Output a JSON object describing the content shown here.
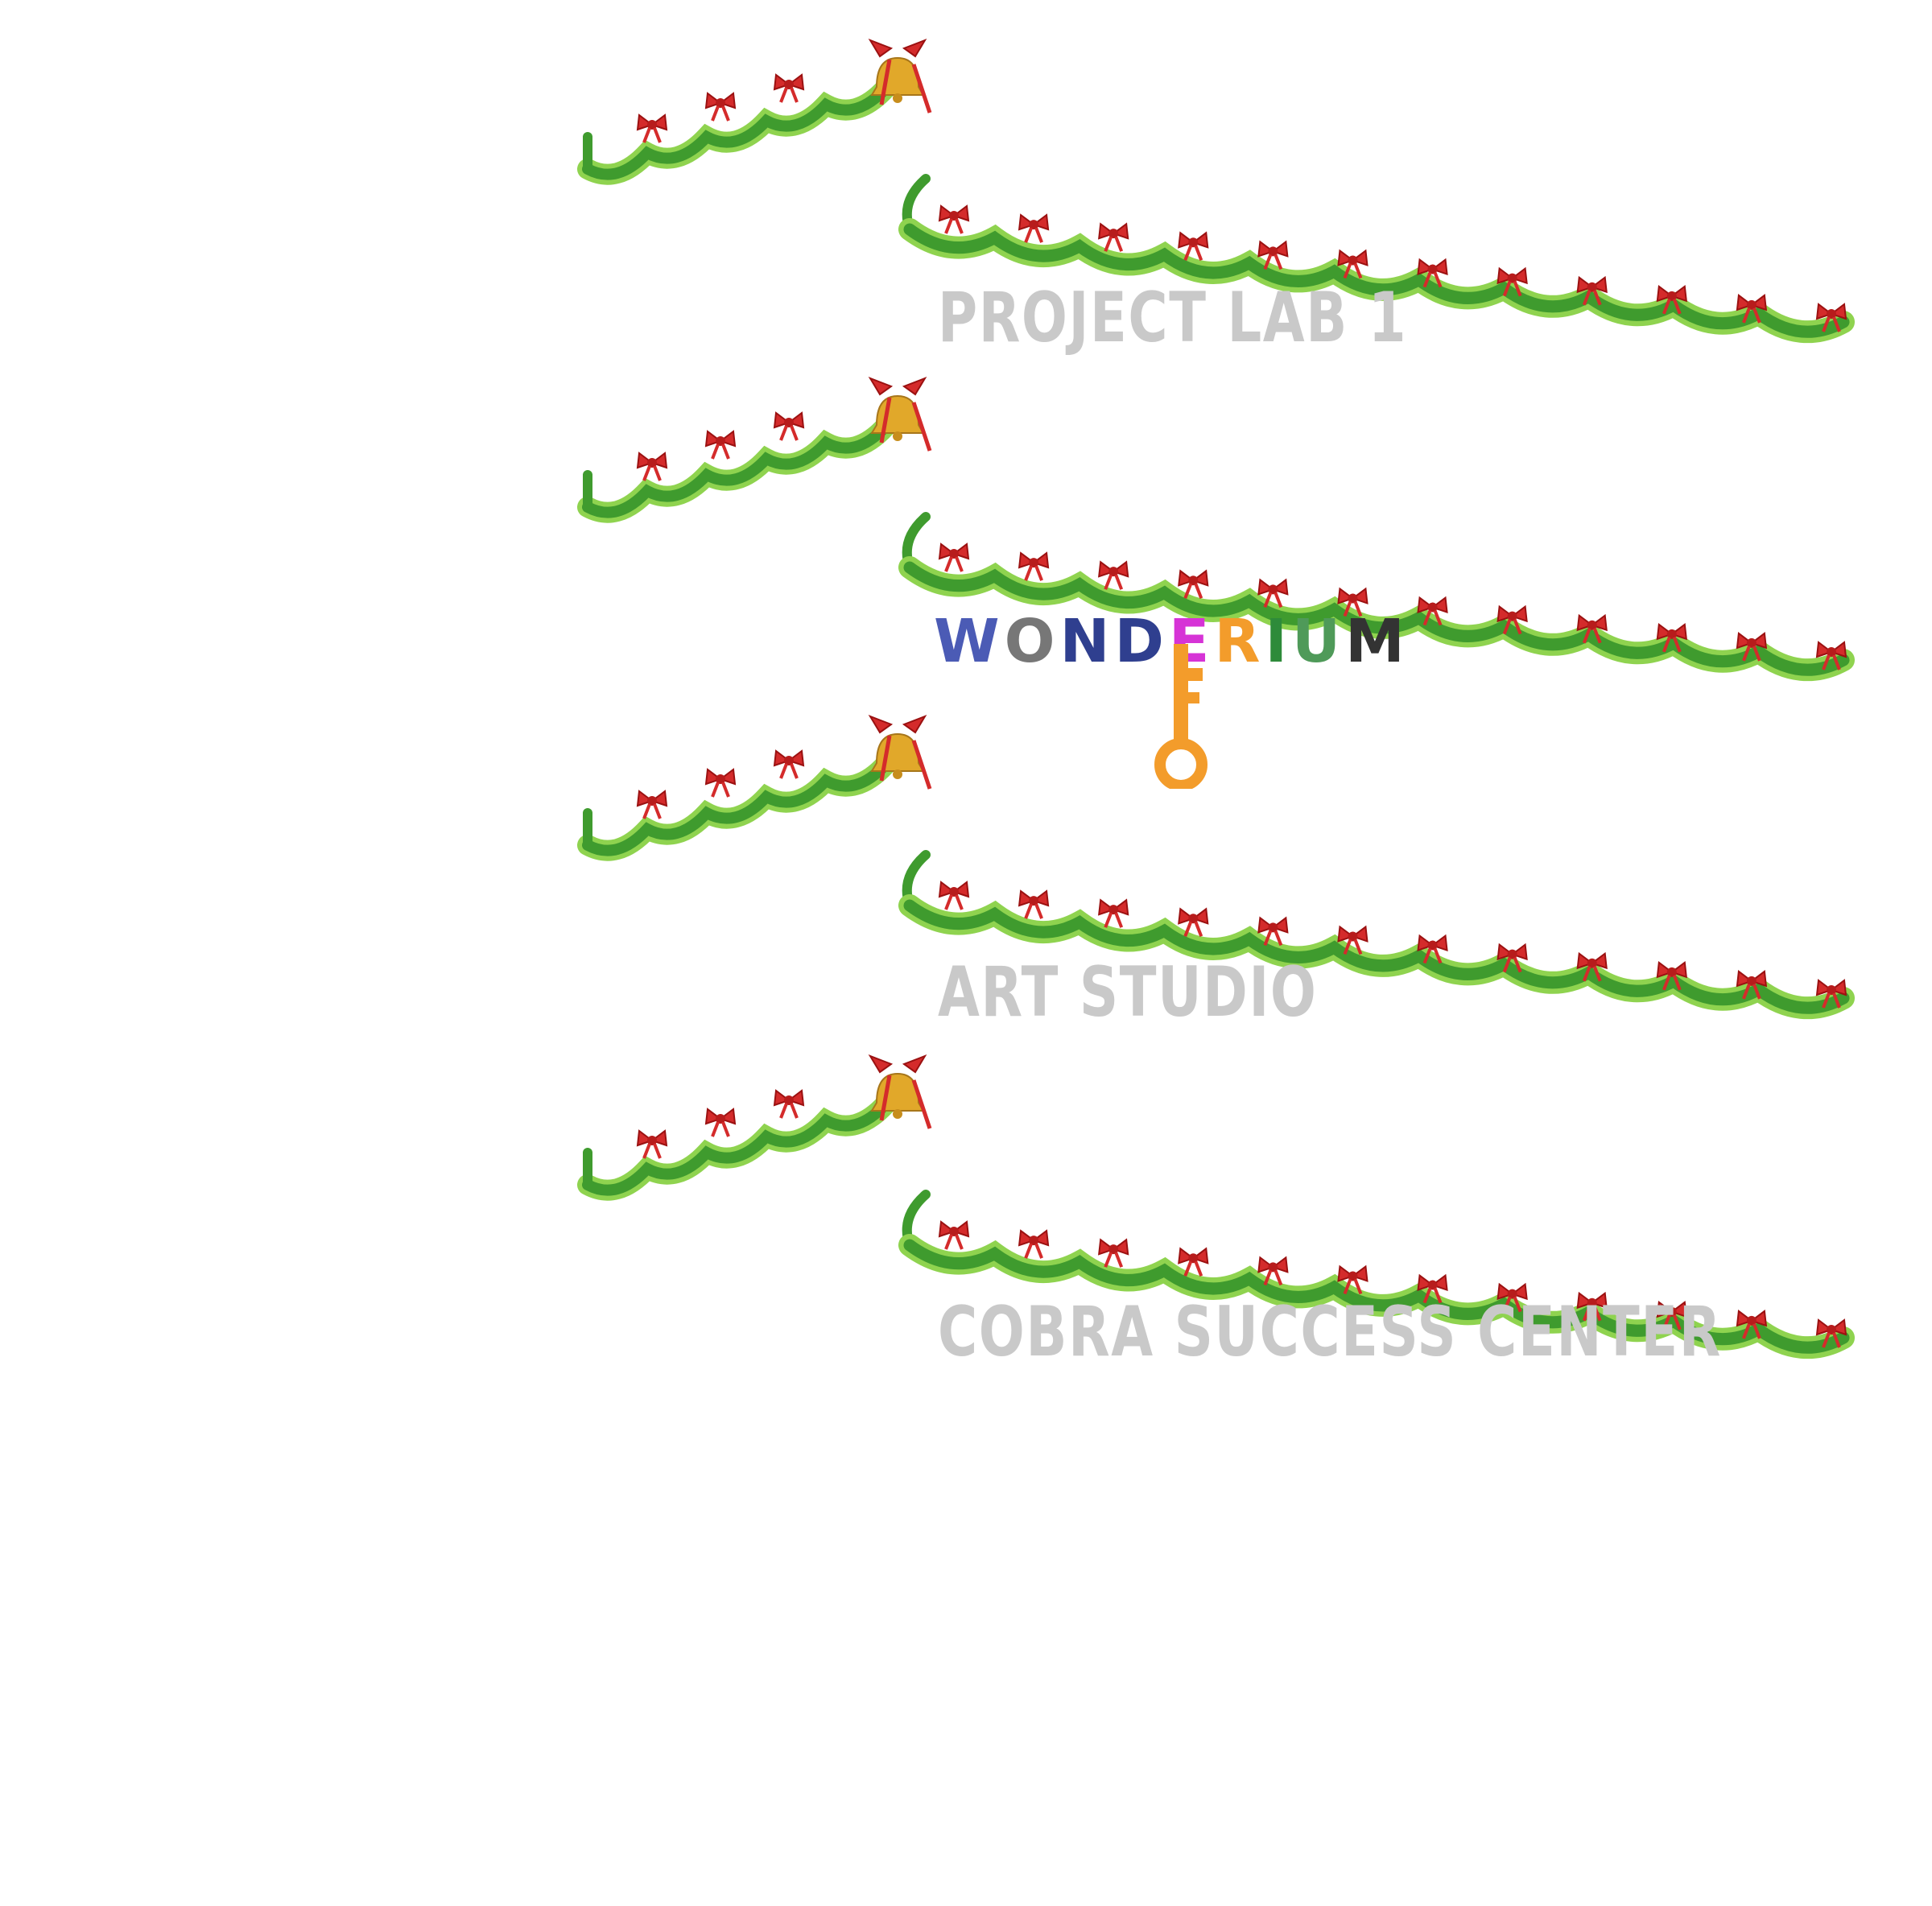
{
  "labels": {
    "room_1": "PROJECT LAB 1",
    "room_2": "ART STUDIO",
    "room_3": "COBRA SUCCESS CENTER"
  },
  "logo": {
    "text": "WONDERIUM",
    "letter_colors": [
      "#4b5bb5",
      "#777777",
      "#2f3f8f",
      "#2f3f8f",
      "#d633d6",
      "#f39c2b",
      "#2e8b3a",
      "#4f9a59",
      "#333333"
    ]
  },
  "colors": {
    "label_gray": "#c9c9c9",
    "garland_green": "#3f9b2e",
    "garland_light": "#8fd34f",
    "bow_red": "#d42b2b",
    "bell_gold": "#e1a82a",
    "key_orange": "#f39c2b"
  },
  "icons": {
    "bow": "red-bow-icon",
    "bell": "gold-bell-icon",
    "key": "key-icon"
  }
}
